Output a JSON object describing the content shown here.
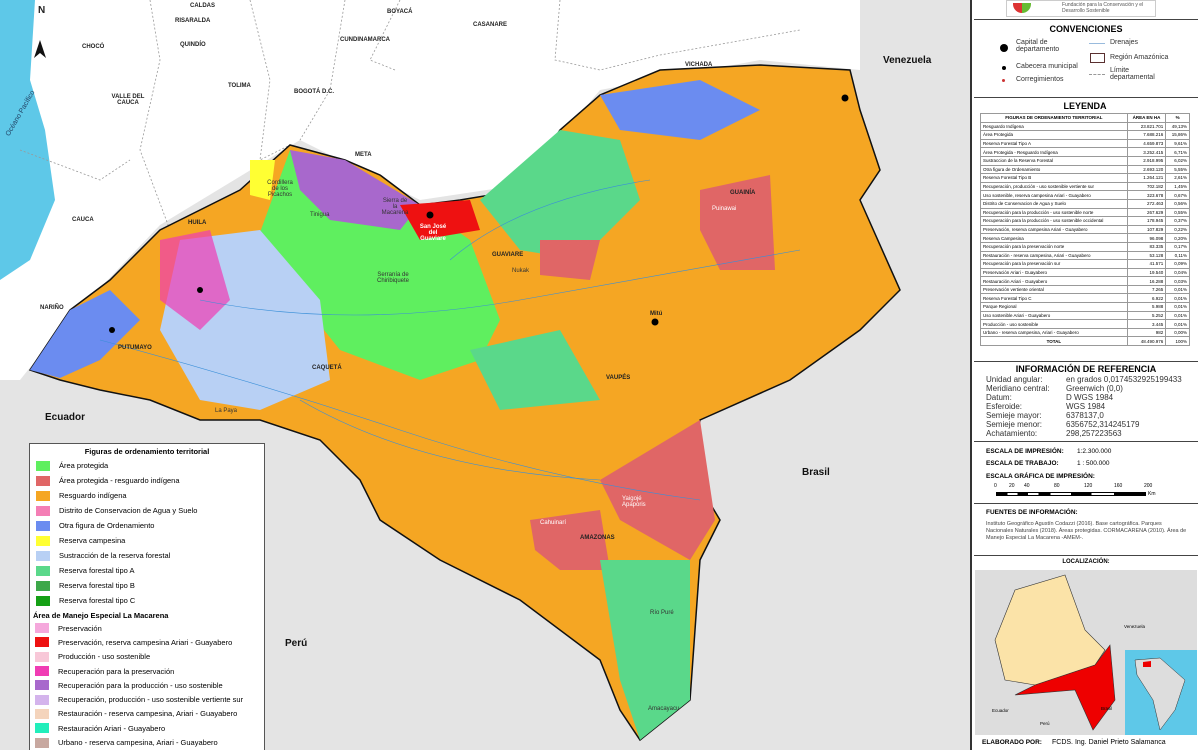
{
  "map": {
    "departments": [
      "CALDAS",
      "RISARALDA",
      "QUINDÍO",
      "CHOCÓ",
      "BOYACÁ",
      "CASANARE",
      "CUNDINAMARCA",
      "TOLIMA",
      "BOGOTÁ D.C.",
      "VALLE DEL CAUCA",
      "META",
      "CAUCA",
      "HUILA",
      "NARIÑO",
      "PUTUMAYO",
      "CAQUETÁ",
      "GUAVIARE",
      "GUAINÍA",
      "VAUPÉS",
      "AMAZONAS",
      "VICHADA"
    ],
    "countries": [
      "Venezuela",
      "Ecuador",
      "Brasil",
      "Perú"
    ],
    "ocean": "Océano Pacífico",
    "north": "N",
    "places": [
      "Cordillera de los Picachos",
      "Tinigua",
      "Sierra de la Macarena",
      "San José del Guaviare",
      "Serranía de Chiribiquete",
      "Nukak",
      "Puinawai",
      "Mitú",
      "La Paya",
      "Cahuinarí",
      "Yaigojé Apaporis",
      "Río Puré",
      "Amacayacu"
    ]
  },
  "legend": {
    "title": "Figuras de ordenamiento territorial",
    "items": [
      {
        "label": "Área protegida",
        "color": "#5fef5f"
      },
      {
        "label": "Área protegida - resguardo indígena",
        "color": "#e06666"
      },
      {
        "label": "Resguardo indígena",
        "color": "#f5a623"
      },
      {
        "label": "Distrito de Conservacion de Agua y Suelo",
        "color": "#f47eb5"
      },
      {
        "label": "Otra figura de Ordenamiento",
        "color": "#6b8cf0"
      },
      {
        "label": "Reserva campesina",
        "color": "#ffff33"
      },
      {
        "label": "Sustracción de la reserva forestal",
        "color": "#b8d0f4"
      },
      {
        "label": "Reserva forestal tipo A",
        "color": "#5ad88a"
      },
      {
        "label": "Reserva forestal tipo B",
        "color": "#3da84a"
      },
      {
        "label": "Reserva forestal tipo C",
        "color": "#15a015"
      }
    ],
    "amem_title": "Área de Manejo Especial La Macarena",
    "amem_items": [
      {
        "label": "Preservación",
        "color": "#f5a8dc"
      },
      {
        "label": "Preservación, reserva campesina Ariari - Guayabero",
        "color": "#ee1111"
      },
      {
        "label": "Producción - uso sostenible",
        "color": "#f8c8d8"
      },
      {
        "label": "Recuperación para la preservación",
        "color": "#f03cb4"
      },
      {
        "label": "Recuperación para la producción - uso sostenible",
        "color": "#a868cc"
      },
      {
        "label": "Recuperación, producción - uso sostenible vertiente sur",
        "color": "#d4b4ec"
      },
      {
        "label": "Restauración - reserva campesina, Ariari - Guayabero",
        "color": "#f4d4bc"
      },
      {
        "label": "Restauración Ariari - Guayabero",
        "color": "#22eebb"
      },
      {
        "label": "Urbano - reserva campesina, Ariari - Guayabero",
        "color": "#c8a8a0"
      }
    ]
  },
  "panel": {
    "logo_text": "Fundación para la Conservación y el Desarrollo Sostenible",
    "conventions": {
      "title": "CONVENCIONES",
      "items": [
        "Capital de departamento",
        "Cabecera municipal",
        "Corregimientos",
        "Drenajes",
        "Región Amazónica",
        "Límite departamental"
      ]
    },
    "leyenda": {
      "title": "LEYENDA",
      "headers": [
        "FIGURAS DE ORDENAMIENTO TERRITORIAL",
        "ÁREA EN HA",
        "%"
      ],
      "rows": [
        [
          "Resguardo Indígena",
          "23.821.701",
          "49,13%"
        ],
        [
          "Área Protegida",
          "7.688.216",
          "15,86%"
        ],
        [
          "Reserva Forestal Tipo A",
          "4.659.873",
          "9,61%"
        ],
        [
          "Área Protegida - Resguardo Indígena",
          "3.252.415",
          "6,71%"
        ],
        [
          "Sustraccion de la Reserva Forestal",
          "2.918.995",
          "6,02%"
        ],
        [
          "Otra figura de Ordenamiento",
          "2.693.120",
          "5,55%"
        ],
        [
          "Reserva Forestal Tipo B",
          "1.264.121",
          "2,61%"
        ],
        [
          "Recuperación, producción - uso sostenible vertiente sur",
          "702.182",
          "1,45%"
        ],
        [
          "Uso sostenible, reserva campesina Ariari - Guayabero",
          "323.678",
          "0,67%"
        ],
        [
          "Distrito de Conservacion de Agua y Suelo",
          "272.463",
          "0,56%"
        ],
        [
          "Recuperación para la producción - uso sostenible norte",
          "267.629",
          "0,55%"
        ],
        [
          "Recuperación para la producción - uso sostenible occidental",
          "178.945",
          "0,37%"
        ],
        [
          "Preservación, reserva campesina Ariari - Guayabero",
          "107.829",
          "0,22%"
        ],
        [
          "Reserva Campesina",
          "96.098",
          "0,20%"
        ],
        [
          "Recuperación para la preservación norte",
          "83.335",
          "0,17%"
        ],
        [
          "Restauración - reserva campesina, Ariari - Guayabero",
          "53.128",
          "0,11%"
        ],
        [
          "Recuperación para la preservación sur",
          "41.571",
          "0,09%"
        ],
        [
          "Preservación Ariari - Guayabero",
          "19.540",
          "0,04%"
        ],
        [
          "Restauración Ariari - Guayabero",
          "16.288",
          "0,03%"
        ],
        [
          "Preservación vertiente oriental",
          "7.265",
          "0,01%"
        ],
        [
          "Reserva Forestal Tipo C",
          "6.922",
          "0,01%"
        ],
        [
          "Parque Regional",
          "5.988",
          "0,01%"
        ],
        [
          "Uso sostenible Ariari - Guayabero",
          "5.252",
          "0,01%"
        ],
        [
          "Producción - uso sostenible",
          "3.445",
          "0,01%"
        ],
        [
          "Urbano - reserva campesina, Ariari - Guayabero",
          "982",
          "0,00%"
        ]
      ],
      "total": [
        "TOTAL",
        "48.490.976",
        "100%"
      ]
    },
    "reference": {
      "title": "INFORMACIÓN DE REFERENCIA",
      "rows": [
        [
          "Unidad angular:",
          "en grados 0,0174532925199433"
        ],
        [
          "Meridiano central:",
          "Greenwich (0,0)"
        ],
        [
          "Datum:",
          "D WGS 1984"
        ],
        [
          "Esferoide:",
          "WGS 1984"
        ],
        [
          "Semieje mayor:",
          "6378137,0"
        ],
        [
          "Semieje menor:",
          "6356752,314245179"
        ],
        [
          "Achatamiento:",
          "298,257223563"
        ]
      ]
    },
    "scales": {
      "print_label": "ESCALA DE IMPRESIÓN:",
      "print_value": "1:2.300.000",
      "work_label": "ESCALA DE TRABAJO:",
      "work_value": "1 : 500.000",
      "graphic_label": "ESCALA GRÁFICA DE IMPRESIÓN:",
      "ticks": [
        "0",
        "20",
        "40",
        "80",
        "120",
        "160",
        "200"
      ],
      "unit": "Km"
    },
    "sources": {
      "title": "FUENTES DE INFORMACIÓN:",
      "text": "Instituto Geográfico Agustín Codazzi (2016). Base cartográfica. Parques Nacionales Naturales (2018). Áreas protegidas. CORMACARENA (2010). Área de Manejo Especial La Macarena -AMEM-."
    },
    "location": {
      "title": "LOCALIZACIÓN:",
      "labels": [
        "Venezuela",
        "Ecuador",
        "Brasil",
        "Perú"
      ]
    },
    "credits": {
      "label": "ELABORADO POR:",
      "value": "FCDS. Ing. Daniel Prieto Salamanca"
    }
  }
}
